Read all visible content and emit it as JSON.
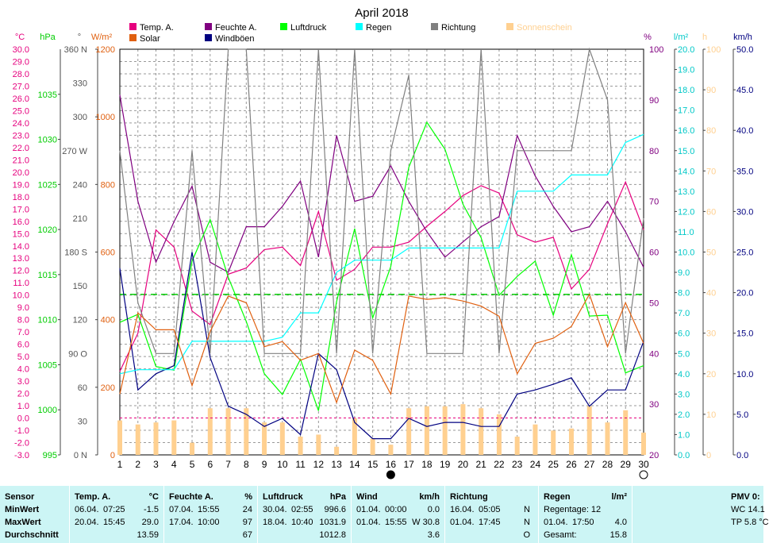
{
  "chart_data": {
    "type": "line",
    "title": "April 2018",
    "days": [
      1,
      2,
      3,
      4,
      5,
      6,
      7,
      8,
      9,
      10,
      11,
      12,
      13,
      14,
      15,
      16,
      17,
      18,
      19,
      20,
      21,
      22,
      23,
      24,
      25,
      26,
      27,
      28,
      29,
      30
    ],
    "axes": {
      "temp": {
        "unit": "°C",
        "range": [
          -3,
          30
        ],
        "color": "#e6007e",
        "ticks": [
          "30.0",
          "29.0",
          "28.0",
          "27.0",
          "26.0",
          "25.0",
          "24.0",
          "23.0",
          "22.0",
          "21.0",
          "20.0",
          "19.0",
          "18.0",
          "17.0",
          "16.0",
          "15.0",
          "14.0",
          "13.0",
          "12.0",
          "11.0",
          "10.0",
          "9.0",
          "8.0",
          "7.0",
          "6.0",
          "5.0",
          "4.0",
          "3.0",
          "2.0",
          "1.0",
          "0.0",
          "-1.0",
          "-2.0",
          "-3.0"
        ]
      },
      "pressure": {
        "unit": "hPa",
        "range": [
          995,
          1040
        ],
        "color": "#00cc00",
        "ticks": [
          "1035",
          "1030",
          "1025",
          "1020",
          "1015",
          "1010",
          "1005",
          "1000",
          "995"
        ]
      },
      "direction": {
        "unit": "°",
        "range": [
          0,
          360
        ],
        "color": "#555555",
        "ticks": [
          "360 N",
          "330",
          "300",
          "270 W",
          "240",
          "210",
          "180 S",
          "150",
          "120",
          "90  O",
          "60",
          "30",
          "0  N"
        ]
      },
      "solar": {
        "unit": "W/m²",
        "range": [
          0,
          1200
        ],
        "color": "#e06010",
        "ticks": [
          "1200",
          "1000",
          "800",
          "600",
          "400",
          "200",
          "0"
        ]
      },
      "humidity": {
        "unit": "%",
        "range": [
          20,
          100
        ],
        "color": "#800080",
        "ticks": [
          "100",
          "90",
          "80",
          "70",
          "60",
          "50",
          "40",
          "30",
          "20"
        ]
      },
      "rain": {
        "unit": "l/m²",
        "range": [
          0,
          20
        ],
        "color": "#00c8c8",
        "ticks": [
          "20.0",
          "19.0",
          "18.0",
          "17.0",
          "16.0",
          "15.0",
          "14.0",
          "13.0",
          "12.0",
          "11.0",
          "10.0",
          "9.0",
          "8.0",
          "7.0",
          "6.0",
          "5.0",
          "4.0",
          "3.0",
          "2.0",
          "1.0",
          "0.0"
        ]
      },
      "sun": {
        "unit": "h",
        "range": [
          0,
          100
        ],
        "color": "#ffd090",
        "ticks": [
          "100",
          "90",
          "80",
          "70",
          "60",
          "50",
          "40",
          "30",
          "20",
          "10",
          "0"
        ]
      },
      "wind": {
        "unit": "km/h",
        "range": [
          0,
          50
        ],
        "color": "#000080",
        "ticks": [
          "50.0",
          "45.0",
          "40.0",
          "35.0",
          "30.0",
          "25.0",
          "20.0",
          "15.0",
          "10.0",
          "5.0",
          "0.0"
        ]
      }
    },
    "legend": [
      {
        "name": "Temp. A.",
        "color": "#e6007e"
      },
      {
        "name": "Solar",
        "color": "#e06010"
      },
      {
        "name": "Feuchte A.",
        "color": "#800080"
      },
      {
        "name": "Windböen",
        "color": "#000080"
      },
      {
        "name": "Luftdruck",
        "color": "#00ff00"
      },
      {
        "name": "Regen",
        "color": "#00ffff"
      },
      {
        "name": "Richtung",
        "color": "#808080"
      },
      {
        "name": "Sonnenschein",
        "color": "#ffd090"
      }
    ],
    "series": [
      {
        "name": "Temp. A.",
        "axis": "temp",
        "color": "#e6007e",
        "values": [
          3.8,
          6.9,
          15.3,
          13.9,
          8.7,
          7.6,
          11.7,
          12.2,
          13.7,
          13.9,
          12.4,
          16.8,
          11.2,
          12.1,
          13.9,
          13.9,
          14.3,
          15.6,
          16.8,
          18.1,
          18.9,
          18.3,
          14.9,
          14.3,
          14.7,
          10.5,
          12.1,
          15.8,
          19.2,
          15.3
        ]
      },
      {
        "name": "Feuchte A.",
        "axis": "humidity",
        "color": "#800080",
        "values": [
          91,
          70,
          58,
          66,
          73,
          58,
          56,
          65,
          65,
          69,
          74,
          59,
          83,
          70,
          71,
          77,
          70,
          64,
          59,
          62,
          65,
          67,
          83,
          75,
          69,
          64,
          65,
          70,
          64,
          57
        ]
      },
      {
        "name": "Luftdruck",
        "axis": "pressure",
        "color": "#00ff00",
        "values": [
          1009.7,
          1010.6,
          1004.8,
          1004.4,
          1016.5,
          1021.1,
          1014.7,
          1009.8,
          1004.0,
          1001.7,
          1005.6,
          999.9,
          1012.0,
          1020.1,
          1010.2,
          1015.9,
          1026.9,
          1031.9,
          1028.9,
          1022.8,
          1019.1,
          1012.7,
          1014.8,
          1016.5,
          1010.5,
          1017.2,
          1010.4,
          1010.5,
          1004.1,
          1004.9
        ]
      },
      {
        "name": "Windböen",
        "axis": "wind",
        "color": "#000080",
        "values": [
          23.0,
          8.0,
          10.0,
          11.0,
          25.0,
          12.0,
          6.0,
          5.0,
          3.5,
          4.5,
          2.5,
          12.5,
          10.5,
          4.0,
          2.0,
          2.0,
          4.5,
          3.5,
          4.0,
          4.0,
          3.5,
          3.5,
          7.5,
          8.0,
          8.7,
          9.5,
          6.0,
          8.0,
          8.0,
          14.0
        ]
      },
      {
        "name": "Regen",
        "axis": "rain",
        "color": "#00ffff",
        "values": [
          4.0,
          4.2,
          4.2,
          4.2,
          5.6,
          5.6,
          5.6,
          5.6,
          5.6,
          5.8,
          7.0,
          7.0,
          9.0,
          9.6,
          9.6,
          9.6,
          10.2,
          10.2,
          10.2,
          10.2,
          10.2,
          10.2,
          13.0,
          13.0,
          13.0,
          13.8,
          13.8,
          13.8,
          15.4,
          15.8
        ]
      },
      {
        "name": "Richtung",
        "axis": "direction",
        "color": "#808080",
        "values": [
          270,
          135,
          90,
          90,
          270,
          90,
          360,
          360,
          90,
          90,
          90,
          360,
          90,
          360,
          90,
          270,
          337,
          90,
          90,
          90,
          360,
          90,
          270,
          270,
          270,
          270,
          360,
          315,
          90,
          210
        ]
      },
      {
        "name": "Solar",
        "axis": "solar",
        "color": "#e06010",
        "values": [
          180,
          420,
          370,
          370,
          205,
          365,
          470,
          450,
          320,
          335,
          280,
          300,
          155,
          310,
          280,
          180,
          470,
          460,
          465,
          455,
          440,
          410,
          240,
          330,
          345,
          380,
          475,
          320,
          450,
          330
        ]
      },
      {
        "name": "Sonnenschein",
        "axis": "sun",
        "type": "bar",
        "color": "#ffd090",
        "values": [
          8.5,
          7.5,
          8,
          8.5,
          3,
          11.5,
          11.5,
          11.5,
          8,
          8,
          4.5,
          5,
          2,
          9,
          4,
          2.5,
          11.5,
          12,
          12,
          12.5,
          11.5,
          10,
          4.5,
          7.5,
          6,
          6.5,
          12,
          8,
          11,
          5.5
        ]
      }
    ],
    "reference_lines": [
      {
        "axis": "pressure",
        "value": 1012.8,
        "style": "dashed",
        "color": "#00cc00"
      },
      {
        "axis": "temp",
        "value": 0,
        "style": "dashed",
        "color": "#e6007e"
      }
    ],
    "moon_markers": [
      {
        "day": 16,
        "phase": "new"
      },
      {
        "day": 30,
        "phase": "full"
      }
    ],
    "grid": true
  },
  "stats": {
    "rows": [
      "Sensor",
      "MinWert",
      "MaxWert",
      "Durchschnitt"
    ],
    "temp": {
      "h": "Temp. A.",
      "u": "°C",
      "min": [
        "06.04.",
        "07:25",
        "-1.5"
      ],
      "max": [
        "20.04.",
        "15:45",
        "29.0"
      ],
      "avg": "13.59"
    },
    "hum": {
      "h": "Feuchte A.",
      "u": "%",
      "min": [
        "07.04.",
        "15:55",
        "24"
      ],
      "max": [
        "17.04.",
        "10:00",
        "97"
      ],
      "avg": "67"
    },
    "press": {
      "h": "Luftdruck",
      "u": "hPa",
      "min": [
        "30.04.",
        "02:55",
        "996.6"
      ],
      "max": [
        "18.04.",
        "10:40",
        "1031.9"
      ],
      "avg": "1012.8"
    },
    "wind": {
      "h": "Wind",
      "u": "km/h",
      "min": [
        "01.04.",
        "00:00",
        "0.0"
      ],
      "max": [
        "01.04.",
        "15:55",
        "W 30.8"
      ],
      "avg": "3.6"
    },
    "dir": {
      "h": "Richtung",
      "min": [
        "16.04.",
        "05:05",
        "N"
      ],
      "max": [
        "01.04.",
        "17:45",
        "N"
      ],
      "avg": "O"
    },
    "rain": {
      "h": "Regen",
      "u": "l/m²",
      "r1": "Regentage: 12",
      "r2d": "01.04.",
      "r2t": "17:50",
      "r2v": "4.0",
      "r3": "Gesamt:",
      "r3v": "15.8"
    },
    "pmv": {
      "h": "PMV 0:",
      "wc": "WC 14.1",
      "tp": "TP 5.8 °C"
    }
  }
}
